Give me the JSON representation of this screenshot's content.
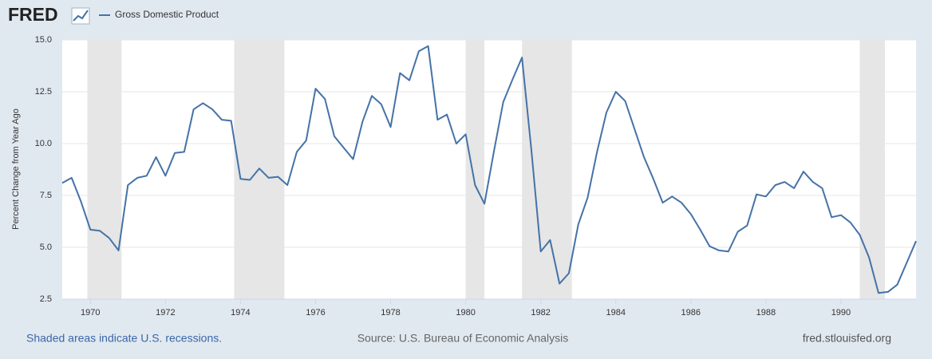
{
  "chart_data": {
    "type": "line",
    "brand": "FRED",
    "ylabel": "Percent Change from Year Ago",
    "note": "Shaded areas indicate U.S. recessions.",
    "source": "Source: U.S. Bureau of Economic Analysis",
    "site": "fred.stlouisfed.org",
    "xlim": [
      1969.25,
      1992.0
    ],
    "xticks": [
      1970,
      1972,
      1974,
      1976,
      1978,
      1980,
      1982,
      1984,
      1986,
      1988,
      1990
    ],
    "ylim": [
      2.5,
      15.0
    ],
    "yticks": [
      {
        "value": 2.5,
        "label": "2.5"
      },
      {
        "value": 5,
        "label": "5.0"
      },
      {
        "value": 7.5,
        "label": "7.5"
      },
      {
        "value": 10,
        "label": "10.0"
      },
      {
        "value": 12.5,
        "label": "12.5"
      },
      {
        "value": 15,
        "label": "15.0"
      }
    ],
    "grid": true,
    "recessions": [
      {
        "start": 1969.92,
        "end": 1970.83
      },
      {
        "start": 1973.83,
        "end": 1975.17
      },
      {
        "start": 1980.0,
        "end": 1980.5
      },
      {
        "start": 1981.5,
        "end": 1982.83
      },
      {
        "start": 1990.5,
        "end": 1991.17
      }
    ],
    "recession_color": "#e6e6e6",
    "x": [
      1969.25,
      1969.5,
      1969.75,
      1970.0,
      1970.25,
      1970.5,
      1970.75,
      1971.0,
      1971.25,
      1971.5,
      1971.75,
      1972.0,
      1972.25,
      1972.5,
      1972.75,
      1973.0,
      1973.25,
      1973.5,
      1973.75,
      1974.0,
      1974.25,
      1974.5,
      1974.75,
      1975.0,
      1975.25,
      1975.5,
      1975.75,
      1976.0,
      1976.25,
      1976.5,
      1976.75,
      1977.0,
      1977.25,
      1977.5,
      1977.75,
      1978.0,
      1978.25,
      1978.5,
      1978.75,
      1979.0,
      1979.25,
      1979.5,
      1979.75,
      1980.0,
      1980.25,
      1980.5,
      1980.75,
      1981.0,
      1981.25,
      1981.5,
      1981.75,
      1982.0,
      1982.25,
      1982.5,
      1982.75,
      1983.0,
      1983.25,
      1983.5,
      1983.75,
      1984.0,
      1984.25,
      1984.5,
      1984.75,
      1985.0,
      1985.25,
      1985.5,
      1985.75,
      1986.0,
      1986.25,
      1986.5,
      1986.75,
      1987.0,
      1987.25,
      1987.5,
      1987.75,
      1988.0,
      1988.25,
      1988.5,
      1988.75,
      1989.0,
      1989.25,
      1989.5,
      1989.75,
      1990.0,
      1990.25,
      1990.5,
      1990.75,
      1991.0,
      1991.25,
      1991.5,
      1991.75,
      1992.0
    ],
    "series": [
      {
        "name": "Gross Domestic Product",
        "color": "#4572a7",
        "values": [
          8.1,
          8.35,
          7.2,
          5.85,
          5.8,
          5.45,
          4.85,
          8.0,
          8.35,
          8.45,
          9.35,
          8.45,
          9.55,
          9.6,
          11.65,
          11.95,
          11.65,
          11.15,
          11.1,
          8.3,
          8.25,
          8.8,
          8.35,
          8.4,
          8.0,
          9.6,
          10.15,
          12.65,
          12.15,
          10.35,
          9.8,
          9.25,
          11.05,
          12.3,
          11.9,
          10.8,
          13.4,
          13.05,
          14.45,
          14.7,
          11.15,
          11.4,
          10.0,
          10.45,
          8.0,
          7.1,
          9.6,
          12.0,
          13.1,
          14.15,
          9.7,
          4.8,
          5.35,
          3.25,
          3.75,
          6.1,
          7.4,
          9.6,
          11.5,
          12.5,
          12.05,
          10.7,
          9.35,
          8.3,
          7.15,
          7.45,
          7.15,
          6.6,
          5.85,
          5.05,
          4.85,
          4.8,
          5.75,
          6.05,
          7.55,
          7.45,
          8.0,
          8.15,
          7.85,
          8.65,
          8.15,
          7.85,
          6.45,
          6.55,
          6.2,
          5.6,
          4.5,
          2.8,
          2.85,
          3.2,
          4.25,
          5.3
        ]
      }
    ]
  }
}
